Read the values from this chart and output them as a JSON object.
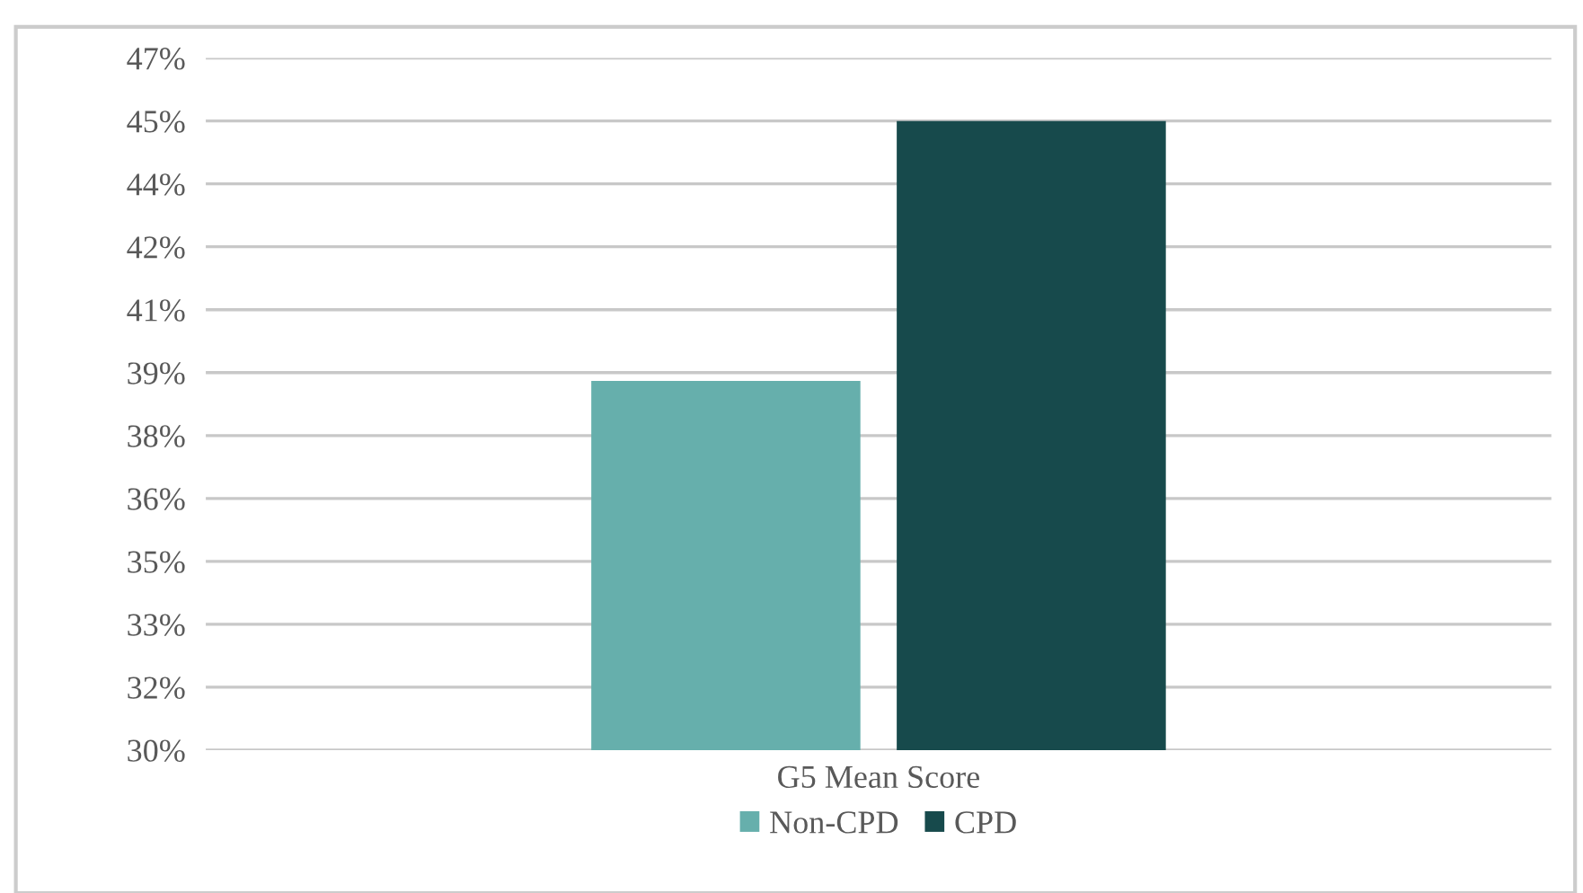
{
  "chart_data": {
    "type": "bar",
    "categories": [
      "G5 Mean Score"
    ],
    "series": [
      {
        "name": "Non-CPD",
        "color": "#66afac",
        "values": [
          38.8
        ]
      },
      {
        "name": "CPD",
        "color": "#174a4c",
        "values": [
          45.0
        ]
      }
    ],
    "ylim": [
      30,
      46.5
    ],
    "yticks": [
      {
        "value": 30,
        "label": "30%"
      },
      {
        "value": 31.5,
        "label": "32%"
      },
      {
        "value": 33,
        "label": "33%"
      },
      {
        "value": 34.5,
        "label": "35%"
      },
      {
        "value": 36,
        "label": "36%"
      },
      {
        "value": 37.5,
        "label": "38%"
      },
      {
        "value": 39,
        "label": "39%"
      },
      {
        "value": 40.5,
        "label": "41%"
      },
      {
        "value": 42,
        "label": "42%"
      },
      {
        "value": 43.5,
        "label": "44%"
      },
      {
        "value": 45,
        "label": "45%"
      },
      {
        "value": 46.5,
        "label": "47%"
      }
    ],
    "grid": "y",
    "legend": "bottom"
  }
}
